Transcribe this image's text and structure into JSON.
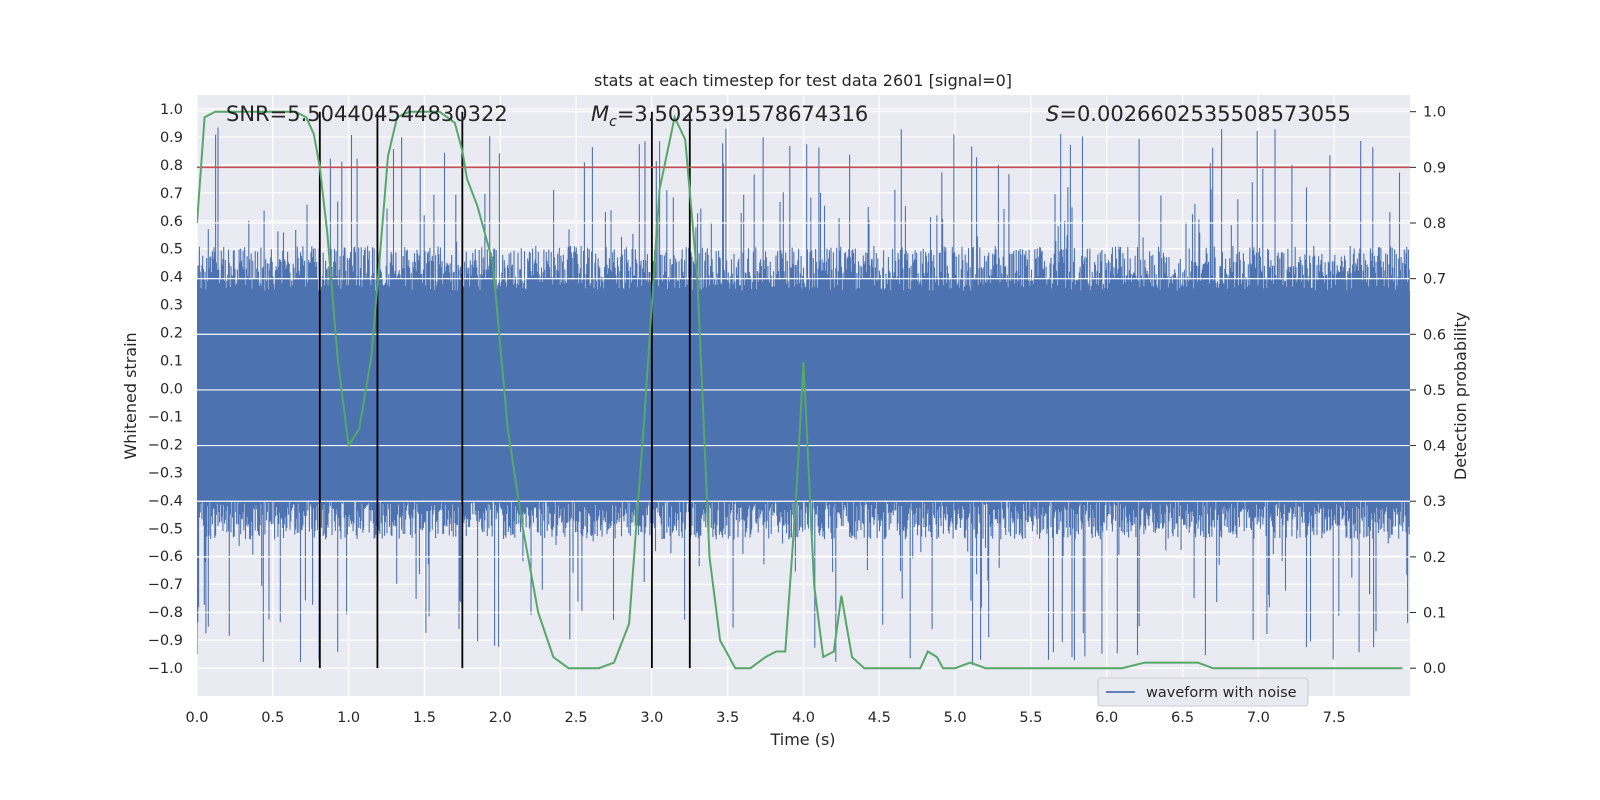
{
  "chart_data": {
    "type": "line",
    "title": "stats at each timestep for test data 2601 [signal=0]",
    "xlabel": "Time (s)",
    "ylabel": "Whitened strain",
    "y2label": "Detection probability",
    "xlim": [
      0,
      8
    ],
    "ylim": [
      -1.1,
      1.05
    ],
    "y2lim": [
      -0.05,
      1.03
    ],
    "x_ticks": [
      "0.0",
      "0.5",
      "1.0",
      "1.5",
      "2.0",
      "2.5",
      "3.0",
      "3.5",
      "4.0",
      "4.5",
      "5.0",
      "5.5",
      "6.0",
      "6.5",
      "7.0",
      "7.5"
    ],
    "y_ticks": [
      "1.0",
      "0.9",
      "0.8",
      "0.7",
      "0.6",
      "0.5",
      "0.4",
      "0.3",
      "0.2",
      "0.1",
      "0.0",
      "−0.1",
      "−0.2",
      "−0.3",
      "−0.4",
      "−0.5",
      "−0.6",
      "−0.7",
      "−0.8",
      "−0.9",
      "−1.0"
    ],
    "y2_ticks": [
      "1.0",
      "0.9",
      "0.8",
      "0.7",
      "0.6",
      "0.5",
      "0.4",
      "0.3",
      "0.2",
      "0.1",
      "0.0"
    ],
    "grid": true,
    "legend": {
      "position": "bottom-right",
      "entries": [
        "waveform with noise"
      ]
    },
    "annotations": {
      "snr": "SNR=5.504404544830322",
      "mc_symbol": "M",
      "mc_sub": "c",
      "mc_value": "=3.5025391578674316",
      "s_symbol": "S",
      "s_value": "=0.0026602535508573055"
    },
    "waveform": {
      "name": "waveform with noise",
      "color": "#4c72b0",
      "band_top": 0.35,
      "band_bottom": -0.4,
      "peak_max": 0.94,
      "peak_min": -0.99,
      "duration": 8
    },
    "threshold": {
      "value": 0.9,
      "axis": "y2",
      "color": "#c44e52"
    },
    "vertical_markers": [
      0.81,
      1.19,
      1.75,
      3.0,
      3.25
    ],
    "probability": {
      "color": "#55a868",
      "x": [
        0.0,
        0.05,
        0.12,
        0.2,
        0.3,
        0.5,
        0.65,
        0.72,
        0.77,
        0.81,
        0.86,
        0.93,
        1.0,
        1.07,
        1.15,
        1.2,
        1.26,
        1.32,
        1.4,
        1.5,
        1.6,
        1.7,
        1.75,
        1.78,
        1.85,
        1.95,
        2.05,
        2.15,
        2.25,
        2.35,
        2.45,
        2.55,
        2.65,
        2.75,
        2.85,
        2.95,
        3.05,
        3.15,
        3.22,
        3.3,
        3.38,
        3.45,
        3.55,
        3.65,
        3.75,
        3.82,
        3.88,
        3.95,
        4.0,
        4.07,
        4.13,
        4.2,
        4.25,
        4.32,
        4.4,
        4.5,
        4.6,
        4.7,
        4.77,
        4.82,
        4.88,
        4.92,
        5.0,
        5.1,
        5.2,
        5.4,
        5.6,
        5.8,
        6.0,
        6.1,
        6.25,
        6.35,
        6.5,
        6.6,
        6.7,
        6.8,
        7.0,
        7.2,
        7.5,
        7.8,
        7.95
      ],
      "y": [
        0.8,
        0.99,
        1.0,
        1.0,
        1.0,
        1.0,
        1.0,
        0.99,
        0.96,
        0.9,
        0.78,
        0.55,
        0.4,
        0.43,
        0.56,
        0.72,
        0.92,
        0.99,
        1.0,
        1.0,
        1.0,
        0.98,
        0.93,
        0.88,
        0.83,
        0.73,
        0.43,
        0.25,
        0.1,
        0.02,
        0.0,
        0.0,
        0.0,
        0.01,
        0.08,
        0.45,
        0.86,
        0.99,
        0.95,
        0.7,
        0.2,
        0.05,
        0.0,
        0.0,
        0.02,
        0.03,
        0.03,
        0.3,
        0.55,
        0.15,
        0.02,
        0.03,
        0.13,
        0.02,
        0.0,
        0.0,
        0.0,
        0.0,
        0.0,
        0.03,
        0.02,
        0.0,
        0.0,
        0.01,
        0.0,
        0.0,
        0.0,
        0.0,
        0.0,
        0.0,
        0.01,
        0.01,
        0.01,
        0.01,
        0.0,
        0.0,
        0.0,
        0.0,
        0.0,
        0.0,
        0.0
      ]
    }
  }
}
